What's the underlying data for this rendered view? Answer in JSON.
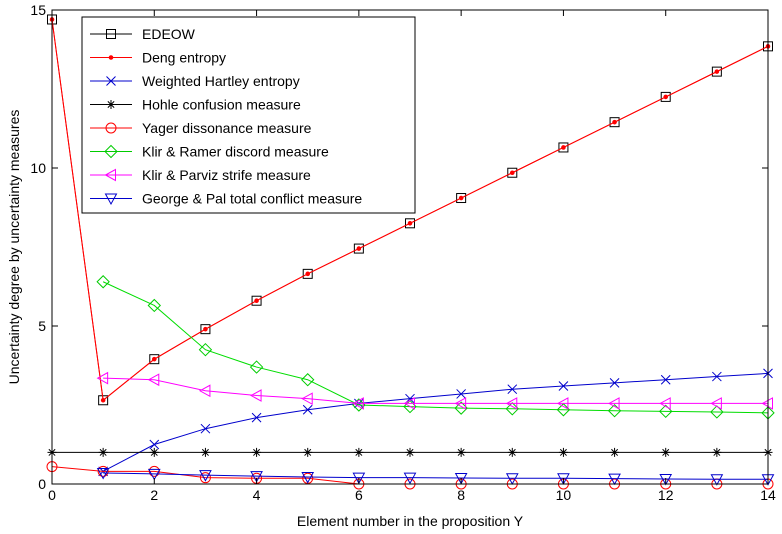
{
  "chart_data": {
    "type": "line",
    "xlabel": "Element number in the proposition Y",
    "ylabel": "Uncertainty degree by uncertainty measures",
    "xlim": [
      0,
      14
    ],
    "ylim": [
      0,
      15
    ],
    "x_ticks": [
      0,
      2,
      4,
      6,
      8,
      10,
      12,
      14
    ],
    "y_ticks": [
      0,
      5,
      10,
      15
    ],
    "grid": false,
    "legend_position": "top-left",
    "series": [
      {
        "name": "EDEOW",
        "color": "#000000",
        "line_color": "#ff0000",
        "marker": "square",
        "x": [
          0,
          1,
          2,
          3,
          4,
          5,
          6,
          7,
          8,
          9,
          10,
          11,
          12,
          13,
          14
        ],
        "values": [
          14.7,
          2.65,
          3.95,
          4.9,
          5.8,
          6.65,
          7.45,
          8.25,
          9.05,
          9.85,
          10.65,
          11.45,
          12.25,
          13.05,
          13.85
        ]
      },
      {
        "name": "Deng entropy",
        "color": "#ff0000",
        "line_color": "#ff0000",
        "marker": "dot",
        "x": [
          0,
          1,
          2,
          3,
          4,
          5,
          6,
          7,
          8,
          9,
          10,
          11,
          12,
          13,
          14
        ],
        "values": [
          14.7,
          2.65,
          3.95,
          4.9,
          5.8,
          6.65,
          7.45,
          8.25,
          9.05,
          9.85,
          10.65,
          11.45,
          12.25,
          13.05,
          13.85
        ]
      },
      {
        "name": "Weighted Hartley entropy",
        "color": "#0000cc",
        "line_color": "#0000cc",
        "marker": "x",
        "x": [
          1,
          2,
          3,
          4,
          5,
          6,
          7,
          8,
          9,
          10,
          11,
          12,
          13,
          14
        ],
        "values": [
          0.4,
          1.25,
          1.75,
          2.1,
          2.35,
          2.55,
          2.7,
          2.85,
          3.0,
          3.1,
          3.2,
          3.3,
          3.4,
          3.5
        ]
      },
      {
        "name": "Hohle confusion measure",
        "color": "#000000",
        "line_color": "#000000",
        "marker": "star",
        "x": [
          0,
          1,
          2,
          3,
          4,
          5,
          6,
          7,
          8,
          9,
          10,
          11,
          12,
          13,
          14
        ],
        "values": [
          1,
          1,
          1,
          1,
          1,
          1,
          1,
          1,
          1,
          1,
          1,
          1,
          1,
          1,
          1
        ]
      },
      {
        "name": "Yager dissonance measure",
        "color": "#ff0000",
        "line_color": "#ff0000",
        "marker": "circle",
        "x": [
          0,
          1,
          2,
          3,
          4,
          5,
          6,
          7,
          8,
          9,
          10,
          11,
          12,
          13,
          14
        ],
        "values": [
          0.55,
          0.4,
          0.4,
          0.2,
          0.18,
          0.18,
          0,
          0,
          0,
          0,
          0,
          0,
          0,
          0,
          0
        ]
      },
      {
        "name": "Klir & Ramer discord measure",
        "color": "#00cc00",
        "line_color": "#00dd00",
        "marker": "diamond",
        "x": [
          1,
          2,
          3,
          4,
          5,
          6,
          7,
          8,
          9,
          10,
          11,
          12,
          13,
          14
        ],
        "values": [
          6.4,
          5.65,
          4.25,
          3.7,
          3.3,
          2.5,
          2.45,
          2.4,
          2.38,
          2.35,
          2.32,
          2.3,
          2.28,
          2.25
        ]
      },
      {
        "name": "Klir & Parviz strife measure",
        "color": "#ff00ff",
        "line_color": "#ff00ff",
        "marker": "triangle-left",
        "x": [
          1,
          2,
          3,
          4,
          5,
          6,
          7,
          8,
          9,
          10,
          11,
          12,
          13,
          14
        ],
        "values": [
          3.35,
          3.3,
          2.95,
          2.8,
          2.7,
          2.55,
          2.55,
          2.55,
          2.55,
          2.55,
          2.55,
          2.55,
          2.55,
          2.55
        ]
      },
      {
        "name": "George & Pal total conflict measure",
        "color": "#0000cc",
        "line_color": "#0000cc",
        "marker": "triangle-down",
        "x": [
          1,
          2,
          3,
          4,
          5,
          6,
          7,
          8,
          9,
          10,
          11,
          12,
          13,
          14
        ],
        "values": [
          0.35,
          0.32,
          0.28,
          0.25,
          0.22,
          0.2,
          0.2,
          0.19,
          0.18,
          0.18,
          0.17,
          0.16,
          0.15,
          0.15
        ]
      }
    ]
  }
}
